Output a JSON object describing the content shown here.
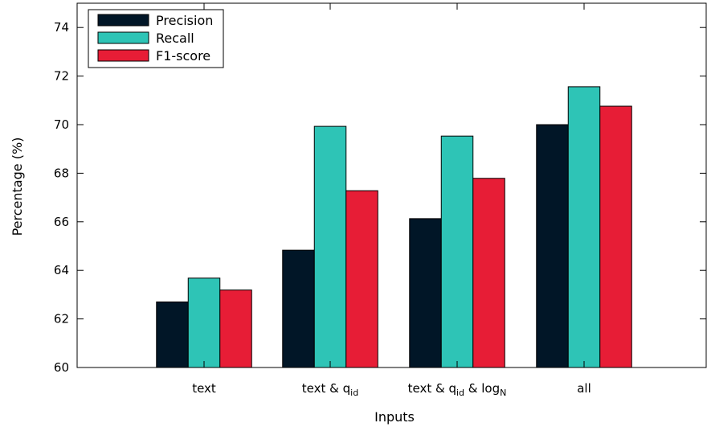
{
  "chart_data": {
    "type": "bar",
    "categories": [
      {
        "text": "text",
        "sub": ""
      },
      {
        "text": "text & q",
        "sub": "id"
      },
      {
        "text": "text & q",
        "sub": "id",
        "text2": " & log",
        "sub2": "N"
      },
      {
        "text": "all",
        "sub": ""
      }
    ],
    "series": [
      {
        "name": "Precision",
        "color": "#011627",
        "values": [
          62.7,
          64.83,
          66.13,
          70.0
        ]
      },
      {
        "name": "Recall",
        "color": "#2ec4b6",
        "values": [
          63.68,
          69.93,
          69.53,
          71.56
        ]
      },
      {
        "name": "F1-score",
        "color": "#e71d36",
        "values": [
          63.19,
          67.28,
          67.79,
          70.76
        ]
      }
    ],
    "xlabel": "Inputs",
    "ylabel": "Percentage (%)",
    "ylim": [
      60,
      75
    ],
    "yticks": [
      60,
      62,
      64,
      66,
      68,
      70,
      72,
      74
    ],
    "legend_position": "top-left",
    "grid": false
  }
}
